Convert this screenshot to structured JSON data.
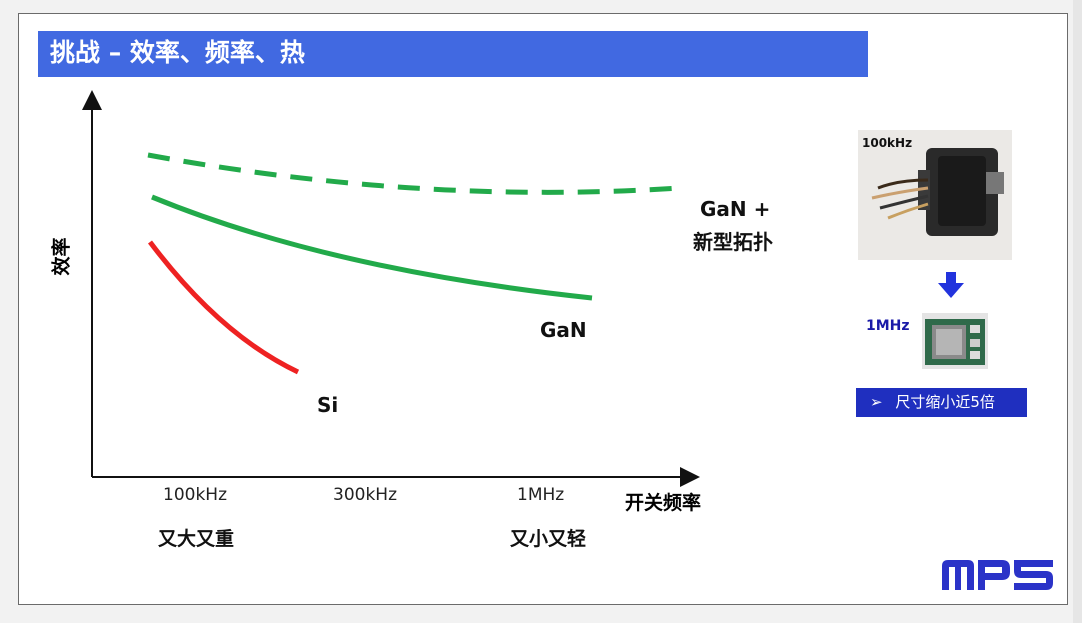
{
  "slide": {
    "title": "挑战 – 效率、频率、热",
    "y_axis_label": "效率",
    "x_axis_label": "开关频率",
    "x_ticks": [
      "100kHz",
      "300kHz",
      "1MHz"
    ],
    "under_ticks": [
      "又大又重",
      "又小又轻"
    ],
    "curve_labels": {
      "si": "Si",
      "gan": "GaN",
      "gan_topology_line1": "GaN +",
      "gan_topology_line2": "新型拓扑"
    },
    "colors": {
      "si": "#ee2222",
      "gan": "#22aa4a",
      "title_bar": "#4169e1",
      "size_box": "#1f2fbf",
      "logo": "#2b33c8"
    }
  },
  "side_panel": {
    "photo_100k_label": "100kHz",
    "photo_1m_label": "1MHz",
    "size_note_bullet": "➢",
    "size_note": "尺寸缩小近5倍",
    "arrow_icon": "down-arrow-icon"
  },
  "logo": {
    "text": "MPS"
  }
}
